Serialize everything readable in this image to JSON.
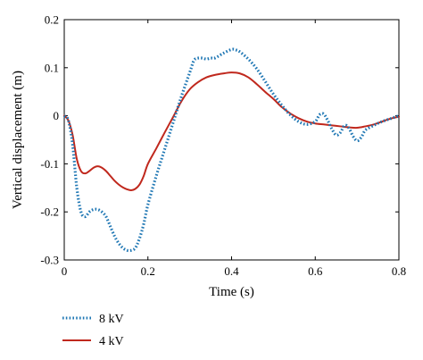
{
  "chart_data": {
    "type": "line",
    "title": "",
    "xlabel": "Time (s)",
    "ylabel": "Vertical displacement (m)",
    "xlim": [
      0,
      0.8
    ],
    "ylim": [
      -0.3,
      0.2
    ],
    "xticks": [
      0,
      0.2,
      0.4,
      0.6,
      0.8
    ],
    "xtick_labels": [
      "0",
      "0.2",
      "0.4",
      "0.6",
      "0.8"
    ],
    "yticks": [
      -0.3,
      -0.2,
      -0.1,
      0,
      0.1,
      0.2
    ],
    "ytick_labels": [
      "-0.3",
      "-0.2",
      "-0.1",
      "0",
      "0.1",
      "0.2"
    ],
    "grid": false,
    "legend_position": "bottom-left, below plot",
    "series": [
      {
        "name": "8 kV",
        "color": "#1f77b4",
        "style": "dotted",
        "x": [
          0,
          0.01,
          0.02,
          0.03,
          0.04,
          0.05,
          0.06,
          0.07,
          0.08,
          0.09,
          0.1,
          0.11,
          0.12,
          0.13,
          0.14,
          0.15,
          0.16,
          0.17,
          0.18,
          0.19,
          0.2,
          0.22,
          0.24,
          0.26,
          0.28,
          0.3,
          0.31,
          0.32,
          0.33,
          0.34,
          0.35,
          0.36,
          0.38,
          0.4,
          0.41,
          0.42,
          0.44,
          0.46,
          0.48,
          0.5,
          0.52,
          0.54,
          0.56,
          0.58,
          0.6,
          0.61,
          0.62,
          0.63,
          0.64,
          0.65,
          0.66,
          0.67,
          0.68,
          0.69,
          0.7,
          0.71,
          0.72,
          0.74,
          0.76,
          0.78,
          0.8
        ],
        "y": [
          0,
          -0.01,
          -0.06,
          -0.15,
          -0.2,
          -0.21,
          -0.2,
          -0.195,
          -0.195,
          -0.2,
          -0.21,
          -0.23,
          -0.25,
          -0.265,
          -0.275,
          -0.28,
          -0.28,
          -0.275,
          -0.255,
          -0.225,
          -0.185,
          -0.125,
          -0.07,
          -0.015,
          0.04,
          0.09,
          0.115,
          0.12,
          0.12,
          0.118,
          0.12,
          0.12,
          0.13,
          0.138,
          0.137,
          0.133,
          0.118,
          0.098,
          0.072,
          0.045,
          0.022,
          0.002,
          -0.012,
          -0.018,
          -0.012,
          0.002,
          0.004,
          -0.01,
          -0.028,
          -0.04,
          -0.035,
          -0.02,
          -0.025,
          -0.042,
          -0.052,
          -0.045,
          -0.03,
          -0.02,
          -0.012,
          -0.006,
          0
        ]
      },
      {
        "name": "4 kV",
        "color": "#c0281d",
        "style": "solid",
        "x": [
          0,
          0.01,
          0.02,
          0.03,
          0.04,
          0.05,
          0.06,
          0.07,
          0.08,
          0.09,
          0.1,
          0.11,
          0.12,
          0.13,
          0.14,
          0.15,
          0.16,
          0.17,
          0.18,
          0.19,
          0.2,
          0.22,
          0.24,
          0.26,
          0.28,
          0.3,
          0.32,
          0.34,
          0.36,
          0.38,
          0.4,
          0.42,
          0.44,
          0.46,
          0.48,
          0.5,
          0.52,
          0.54,
          0.56,
          0.58,
          0.6,
          0.62,
          0.64,
          0.66,
          0.68,
          0.7,
          0.72,
          0.74,
          0.76,
          0.78,
          0.8
        ],
        "y": [
          0,
          -0.01,
          -0.04,
          -0.09,
          -0.115,
          -0.12,
          -0.115,
          -0.108,
          -0.105,
          -0.108,
          -0.115,
          -0.125,
          -0.135,
          -0.143,
          -0.149,
          -0.153,
          -0.155,
          -0.152,
          -0.143,
          -0.125,
          -0.1,
          -0.068,
          -0.035,
          -0.003,
          0.03,
          0.055,
          0.07,
          0.08,
          0.085,
          0.088,
          0.09,
          0.088,
          0.08,
          0.066,
          0.05,
          0.035,
          0.018,
          0.005,
          -0.005,
          -0.012,
          -0.016,
          -0.018,
          -0.02,
          -0.022,
          -0.024,
          -0.025,
          -0.022,
          -0.018,
          -0.012,
          -0.006,
          -0.002
        ]
      }
    ]
  }
}
